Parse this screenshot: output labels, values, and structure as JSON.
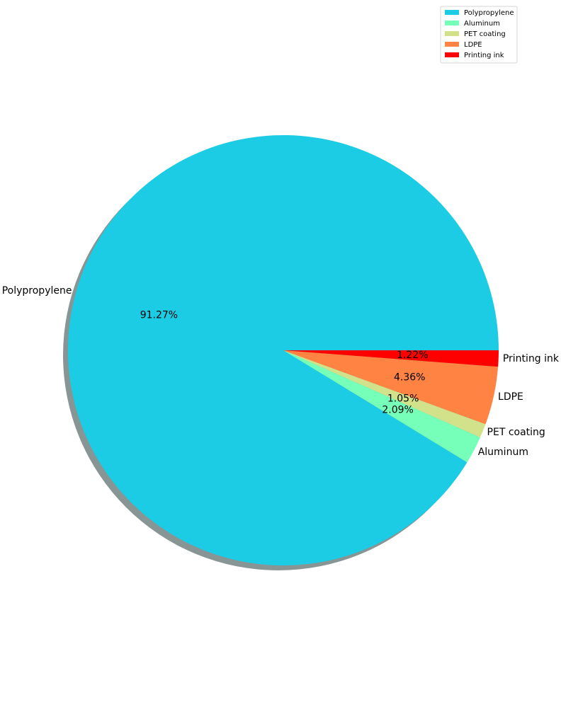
{
  "chart_data": {
    "type": "pie",
    "title": "",
    "categories": [
      "Polypropylene",
      "Aluminum",
      "PET coating",
      "LDPE",
      "Printing ink"
    ],
    "values": [
      91.27,
      2.09,
      1.05,
      4.36,
      1.22
    ],
    "percent_labels": [
      "91.27%",
      "2.09%",
      "1.05%",
      "4.36%",
      "1.22%"
    ],
    "colors": [
      "#1ccce4",
      "#76ffb9",
      "#d2e28a",
      "#ff8444",
      "#ff0000"
    ],
    "start_angle_deg": 0,
    "direction": "counterclockwise",
    "shadow": true,
    "legend": {
      "placement": "upper-right",
      "entries": [
        "Polypropylene",
        "Aluminum",
        "PET coating",
        "LDPE",
        "Printing ink"
      ]
    }
  }
}
